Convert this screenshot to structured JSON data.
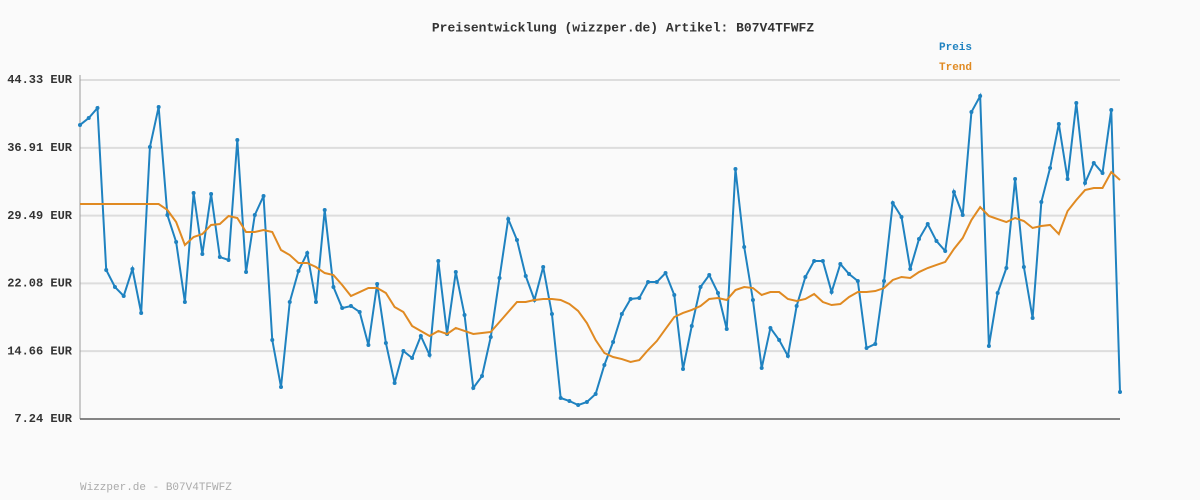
{
  "chart_data": {
    "type": "line",
    "title": "Preisentwicklung (wizzper.de) Artikel: B07V4TFWFZ",
    "ylim": [
      7.24,
      44.33
    ],
    "yticks": [
      {
        "value": 7.24,
        "label": "7.24 EUR"
      },
      {
        "value": 14.66,
        "label": "14.66 EUR"
      },
      {
        "value": 22.08,
        "label": "22.08 EUR"
      },
      {
        "value": 29.49,
        "label": "29.49 EUR"
      },
      {
        "value": 36.91,
        "label": "36.91 EUR"
      },
      {
        "value": 44.33,
        "label": "44.33 EUR"
      }
    ],
    "grid": true,
    "legend": "top-right",
    "series": [
      {
        "name": "Preis",
        "color": "#1f82c0",
        "markers": true,
        "values": [
          39.41,
          40.17,
          41.27,
          23.54,
          21.68,
          20.7,
          23.65,
          18.84,
          37.0,
          41.38,
          29.56,
          26.61,
          20.04,
          31.97,
          25.29,
          31.86,
          24.96,
          24.64,
          37.77,
          23.32,
          29.56,
          31.64,
          15.88,
          10.74,
          20.04,
          23.43,
          25.4,
          20.04,
          30.11,
          21.68,
          19.38,
          19.6,
          18.95,
          15.34,
          22.01,
          15.56,
          11.18,
          14.68,
          13.91,
          16.32,
          14.24,
          24.53,
          16.54,
          23.32,
          18.62,
          10.63,
          11.94,
          16.21,
          22.67,
          29.12,
          26.82,
          22.89,
          20.26,
          23.87,
          18.73,
          9.54,
          9.21,
          8.77,
          9.1,
          9.98,
          13.15,
          15.66,
          18.73,
          20.37,
          20.48,
          22.23,
          22.23,
          23.21,
          20.81,
          12.71,
          17.42,
          21.68,
          22.99,
          21.03,
          17.09,
          34.59,
          26.06,
          20.26,
          12.82,
          17.2,
          15.88,
          14.13,
          19.6,
          22.78,
          24.53,
          24.53,
          21.13,
          24.2,
          23.1,
          22.34,
          15.01,
          15.45,
          22.34,
          30.87,
          29.34,
          23.65,
          26.93,
          28.57,
          26.71,
          25.62,
          32.08,
          29.56,
          40.83,
          42.58,
          15.23,
          21.03,
          23.76,
          33.5,
          23.87,
          18.29,
          30.98,
          34.7,
          39.52,
          33.5,
          41.81,
          33.06,
          35.25,
          34.15,
          41.05,
          10.19
        ]
      },
      {
        "name": "Trend",
        "color": "#e08a22",
        "markers": false,
        "values": [
          30.76,
          30.76,
          30.76,
          30.76,
          30.76,
          30.76,
          30.76,
          30.76,
          30.76,
          30.76,
          30.11,
          28.79,
          26.28,
          27.15,
          27.48,
          28.47,
          28.57,
          29.45,
          29.23,
          27.7,
          27.7,
          27.92,
          27.7,
          25.73,
          25.18,
          24.31,
          24.31,
          23.87,
          23.21,
          22.99,
          21.9,
          20.7,
          21.13,
          21.57,
          21.57,
          21.03,
          19.49,
          18.95,
          17.42,
          16.87,
          16.32,
          16.87,
          16.54,
          17.2,
          16.87,
          16.54,
          16.65,
          16.76,
          17.85,
          18.95,
          20.04,
          20.04,
          20.26,
          20.37,
          20.37,
          20.26,
          19.82,
          19.06,
          17.74,
          15.88,
          14.46,
          14.02,
          13.8,
          13.48,
          13.69,
          14.79,
          15.77,
          17.09,
          18.4,
          18.84,
          19.17,
          19.6,
          20.37,
          20.48,
          20.26,
          21.35,
          21.68,
          21.57,
          20.81,
          21.13,
          21.13,
          20.37,
          20.15,
          20.37,
          20.92,
          20.04,
          19.71,
          19.82,
          20.59,
          21.13,
          21.13,
          21.24,
          21.57,
          22.45,
          22.78,
          22.67,
          23.32,
          23.76,
          24.09,
          24.42,
          25.84,
          27.04,
          29.01,
          30.43,
          29.45,
          29.12,
          28.79,
          29.23,
          28.9,
          28.14,
          28.36,
          28.47,
          27.48,
          29.99,
          31.2,
          32.29,
          32.51,
          32.51,
          34.26,
          33.39
        ]
      }
    ]
  },
  "footer": "Wizzper.de - B07V4TFWFZ"
}
